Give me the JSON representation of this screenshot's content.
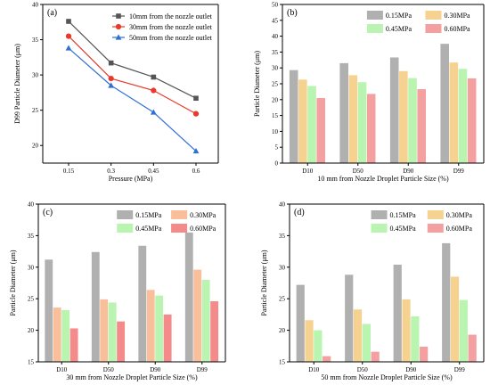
{
  "figure": {
    "chart_data": [
      {
        "panel": "(a)",
        "type": "line",
        "xlabel": "Pressure (MPa)",
        "ylabel": "D99 Particle Diameter (μm)",
        "categories": [
          "0.15",
          "0.3",
          "0.45",
          "0.6"
        ],
        "ylim": [
          17.5,
          40
        ],
        "yticks": [
          "20",
          "25",
          "30",
          "35",
          "40"
        ],
        "grid": false,
        "legend_position": "top-right",
        "series": [
          {
            "name": "10mm from the nozzle outlet",
            "color": "#555555",
            "marker": "square",
            "values": [
              37.6,
              31.7,
              29.7,
              26.7
            ]
          },
          {
            "name": "30mm from the nozzle outlet",
            "color": "#e8392b",
            "marker": "circle",
            "values": [
              35.5,
              29.5,
              27.8,
              24.5
            ]
          },
          {
            "name": "50mm from the nozzle outlet",
            "color": "#2f6fd6",
            "marker": "triangle",
            "values": [
              33.8,
              28.5,
              24.7,
              19.2
            ]
          }
        ]
      },
      {
        "panel": "(b)",
        "type": "bar",
        "xlabel": "10 mm from Nozzle Droplet Particle Size (%)",
        "ylabel": "Particle Diameter (μm)",
        "categories": [
          "D10",
          "D50",
          "D90",
          "D99"
        ],
        "ylim": [
          0,
          50
        ],
        "yticks": [
          "0",
          "5",
          "10",
          "15",
          "20",
          "25",
          "30",
          "35",
          "40",
          "45",
          "50"
        ],
        "grid": false,
        "legend_position": "top",
        "series": [
          {
            "name": "0.15MPa",
            "color": "#b0b0b0",
            "values": [
              29.3,
              31.5,
              33.3,
              37.6
            ]
          },
          {
            "name": "0.30MPa",
            "color": "#f5d28f",
            "values": [
              26.3,
              27.7,
              29.0,
              31.7
            ]
          },
          {
            "name": "0.45MPa",
            "color": "#b9f4b0",
            "values": [
              24.3,
              25.5,
              26.8,
              29.7
            ]
          },
          {
            "name": "0.60MPa",
            "color": "#f4a0a0",
            "values": [
              20.5,
              21.8,
              23.3,
              26.7
            ]
          }
        ]
      },
      {
        "panel": "(c)",
        "type": "bar",
        "xlabel": "30 mm from Nozzle Droplet Particle Size (%)",
        "ylabel": "Particle Diameter (μm)",
        "categories": [
          "D10",
          "D50",
          "D90",
          "D99"
        ],
        "ylim": [
          15,
          40
        ],
        "yticks": [
          "15",
          "20",
          "25",
          "30",
          "35",
          "40"
        ],
        "grid": false,
        "legend_position": "top",
        "series": [
          {
            "name": "0.15MPa",
            "color": "#b0b0b0",
            "values": [
              31.2,
              32.4,
              33.4,
              35.5
            ]
          },
          {
            "name": "0.30MPa",
            "color": "#f9bf9a",
            "values": [
              23.6,
              24.9,
              26.4,
              29.6
            ]
          },
          {
            "name": "0.45MPa",
            "color": "#b9f4b0",
            "values": [
              23.2,
              24.4,
              25.5,
              28.0
            ]
          },
          {
            "name": "0.60MPa",
            "color": "#f48a8a",
            "values": [
              20.3,
              21.4,
              22.5,
              24.6
            ]
          }
        ]
      },
      {
        "panel": "(d)",
        "type": "bar",
        "xlabel": "50 mm from Nozzle Droplet Particle Size (%)",
        "ylabel": "Particle Diameter (μm)",
        "categories": [
          "D10",
          "D50",
          "D90",
          "D99"
        ],
        "ylim": [
          15,
          40
        ],
        "yticks": [
          "15",
          "20",
          "25",
          "30",
          "35",
          "40"
        ],
        "grid": false,
        "legend_position": "top",
        "series": [
          {
            "name": "0.15MPa",
            "color": "#b0b0b0",
            "values": [
              27.2,
              28.8,
              30.4,
              33.8
            ]
          },
          {
            "name": "0.30MPa",
            "color": "#f5d28f",
            "values": [
              21.6,
              23.3,
              24.9,
              28.5
            ]
          },
          {
            "name": "0.45MPa",
            "color": "#b9f4b0",
            "values": [
              20.0,
              21.0,
              22.2,
              24.8
            ]
          },
          {
            "name": "0.60MPa",
            "color": "#f4a0a0",
            "values": [
              15.9,
              16.6,
              17.4,
              19.3
            ]
          }
        ]
      }
    ]
  }
}
